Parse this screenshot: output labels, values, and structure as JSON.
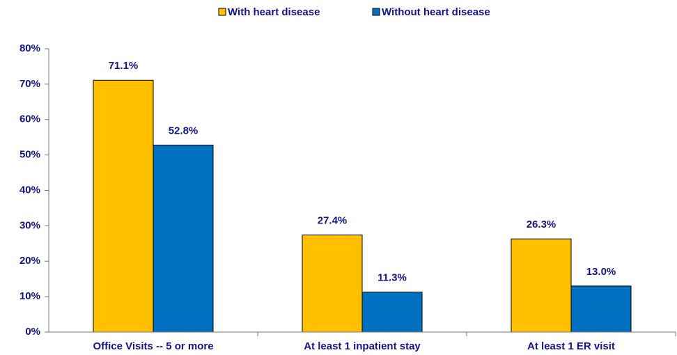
{
  "chart_data": {
    "type": "bar",
    "categories": [
      "Office Visits -- 5 or more",
      "At least 1 inpatient stay",
      "At least 1 ER visit"
    ],
    "series": [
      {
        "name": "With heart disease",
        "color": "#FFC000",
        "values": [
          71.1,
          27.4,
          26.3
        ],
        "value_labels": [
          "71.1%",
          "27.4%",
          "26.3%"
        ]
      },
      {
        "name": "Without heart disease",
        "color": "#0070C0",
        "values": [
          52.8,
          11.3,
          13.0
        ],
        "value_labels": [
          "52.8%",
          "11.3%",
          "13.0%"
        ]
      }
    ],
    "ylim": [
      0,
      80
    ],
    "yticks": [
      {
        "value": 0,
        "label": "0%"
      },
      {
        "value": 10,
        "label": "10%"
      },
      {
        "value": 20,
        "label": "20%"
      },
      {
        "value": 30,
        "label": "30%"
      },
      {
        "value": 40,
        "label": "40%"
      },
      {
        "value": 50,
        "label": "50%"
      },
      {
        "value": 60,
        "label": "60%"
      },
      {
        "value": 70,
        "label": "70%"
      },
      {
        "value": 80,
        "label": "80%"
      }
    ],
    "legend": "top",
    "grid": false
  }
}
